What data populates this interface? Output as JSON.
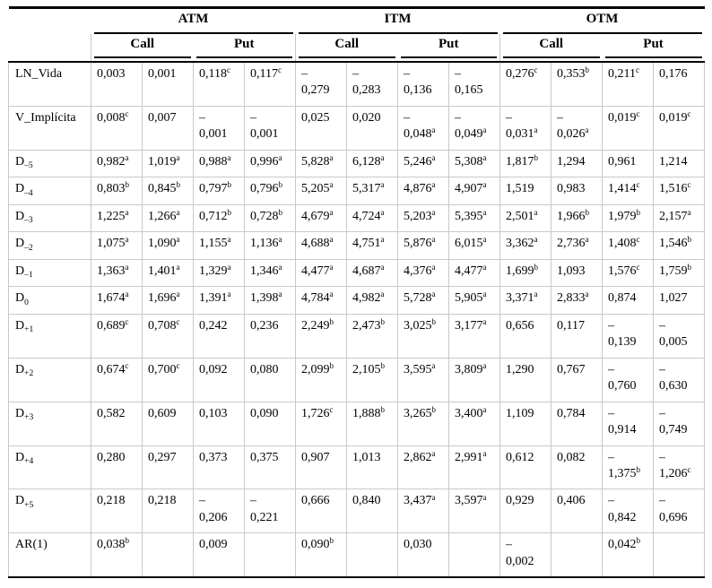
{
  "table": {
    "groups": [
      {
        "label": "ATM",
        "subgroups": [
          "Call",
          "Put"
        ]
      },
      {
        "label": "ITM",
        "subgroups": [
          "Call",
          "Put"
        ]
      },
      {
        "label": "OTM",
        "subgroups": [
          "Call",
          "Put"
        ]
      }
    ],
    "rows": [
      {
        "label": "LN_Vida",
        "sub": "",
        "cells": [
          "0,003",
          "0,001",
          "0,118^c",
          "0,117^c",
          "–0,279",
          "–0,283",
          "–0,136",
          "–0,165",
          "0,276^c",
          "0,353^b",
          "0,211^c",
          "0,176"
        ]
      },
      {
        "label": "V_Implícita",
        "sub": "",
        "cells": [
          "0,008^c",
          "0,007",
          "–0,001",
          "–0,001",
          "0,025",
          "0,020",
          "–0,048^a",
          "–0,049^a",
          "–0,031^a",
          "–0,026^a",
          "0,019^c",
          "0,019^c"
        ]
      },
      {
        "label": "D",
        "sub": "–5",
        "cells": [
          "0,982^a",
          "1,019^a",
          "0,988^a",
          "0,996^a",
          "5,828^a",
          "6,128^a",
          "5,246^a",
          "5,308^a",
          "1,817^b",
          "1,294",
          "0,961",
          "1,214"
        ]
      },
      {
        "label": "D",
        "sub": "–4",
        "cells": [
          "0,803^b",
          "0,845^b",
          "0,797^b",
          "0,796^b",
          "5,205^a",
          "5,317^a",
          "4,876^a",
          "4,907^a",
          "1,519",
          "0,983",
          "1,414^c",
          "1,516^c"
        ]
      },
      {
        "label": "D",
        "sub": "–3",
        "cells": [
          "1,225^a",
          "1,266^a",
          "0,712^b",
          "0,728^b",
          "4,679^a",
          "4,724^a",
          "5,203^a",
          "5,395^a",
          "2,501^a",
          "1,966^b",
          "1,979^b",
          "2,157^a"
        ]
      },
      {
        "label": "D",
        "sub": "–2",
        "cells": [
          "1,075^a",
          "1,090^a",
          "1,155^a",
          "1,136^a",
          "4,688^a",
          "4,751^a",
          "5,876^a",
          "6,015^a",
          "3,362^a",
          "2,736^a",
          "1,408^c",
          "1,546^b"
        ]
      },
      {
        "label": "D",
        "sub": "–1",
        "cells": [
          "1,363^a",
          "1,401^a",
          "1,329^a",
          "1,346^a",
          "4,477^a",
          "4,687^a",
          "4,376^a",
          "4,477^a",
          "1,699^b",
          "1,093",
          "1,576^c",
          "1,759^b"
        ]
      },
      {
        "label": "D",
        "sub": "0",
        "cells": [
          "1,674^a",
          "1,696^a",
          "1,391^a",
          "1,398^a",
          "4,784^a",
          "4,982^a",
          "5,728^a",
          "5,905^a",
          "3,371^a",
          "2,833^a",
          "0,874",
          "1,027"
        ]
      },
      {
        "label": "D",
        "sub": "+1",
        "cells": [
          "0,689^c",
          "0,708^c",
          "0,242",
          "0,236",
          "2,249^b",
          "2,473^b",
          "3,025^b",
          "3,177^a",
          "0,656",
          "0,117",
          "–0,139",
          "–0,005"
        ]
      },
      {
        "label": "D",
        "sub": "+2",
        "cells": [
          "0,674^c",
          "0,700^c",
          "0,092",
          "0,080",
          "2,099^b",
          "2,105^b",
          "3,595^a",
          "3,809^a",
          "1,290",
          "0,767",
          "–0,760",
          "–0,630"
        ]
      },
      {
        "label": "D",
        "sub": "+3",
        "cells": [
          "0,582",
          "0,609",
          "0,103",
          "0,090",
          "1,726^c",
          "1,888^b",
          "3,265^b",
          "3,400^a",
          "1,109",
          "0,784",
          "–0,914",
          "–0,749"
        ]
      },
      {
        "label": "D",
        "sub": "+4",
        "cells": [
          "0,280",
          "0,297",
          "0,373",
          "0,375",
          "0,907",
          "1,013",
          "2,862^a",
          "2,991^a",
          "0,612",
          "0,082",
          "–1,375^b",
          "–1,206^c"
        ]
      },
      {
        "label": "D",
        "sub": "+5",
        "cells": [
          "0,218",
          "0,218",
          "–0,206",
          "–0,221",
          "0,666",
          "0,840",
          "3,437^a",
          "3,597^a",
          "0,929",
          "0,406",
          "–0,842",
          "–0,696"
        ]
      },
      {
        "label": "AR(1)",
        "sub": "",
        "cells": [
          "0,038^b",
          "",
          "0,009",
          "",
          "0,090^b",
          "",
          "0,030",
          "",
          "–0,002",
          "",
          "0,042^b",
          ""
        ]
      }
    ]
  }
}
